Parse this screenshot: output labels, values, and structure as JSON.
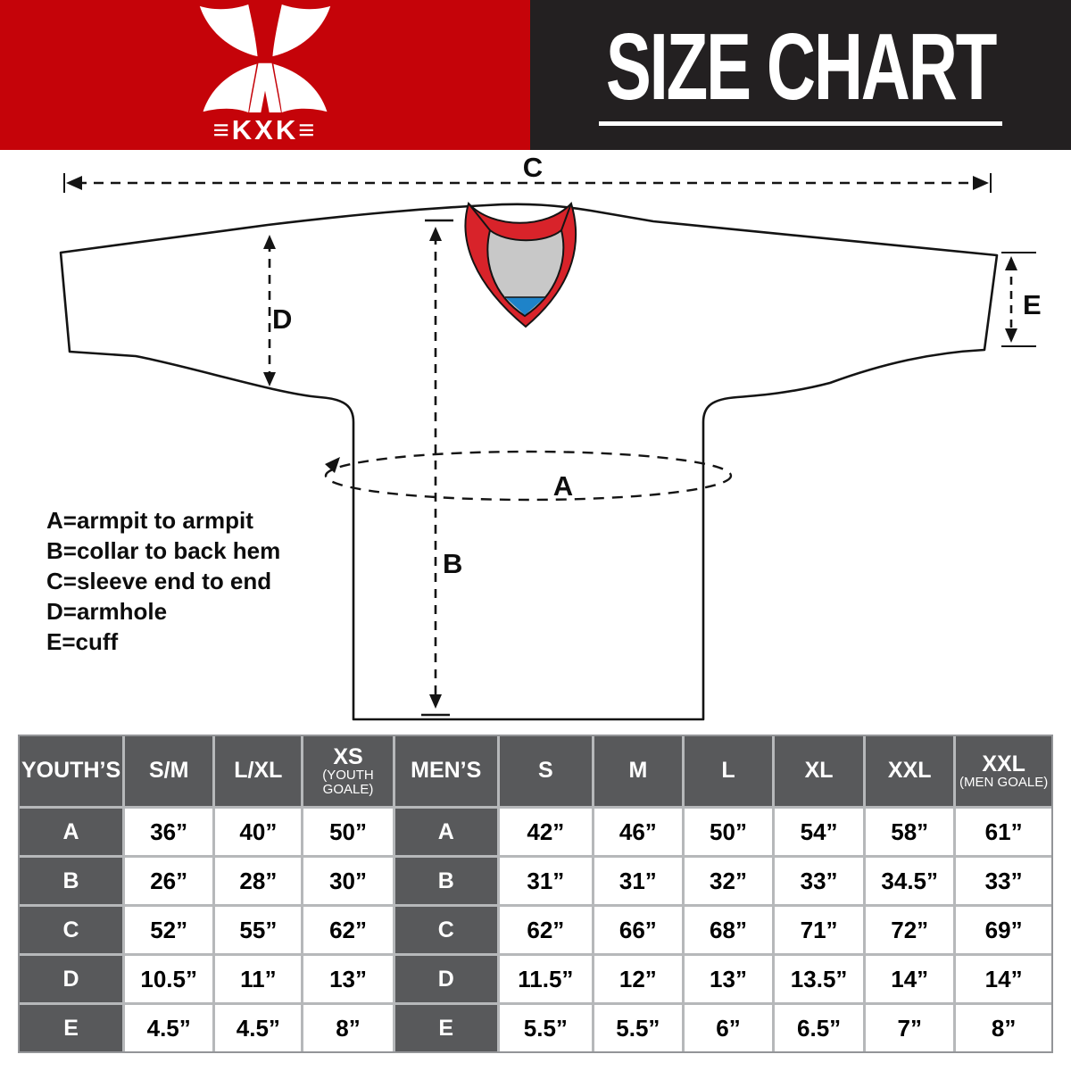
{
  "header": {
    "brand": "KXK",
    "logo_text": "≡KXK≡",
    "title": "SIZE CHART",
    "colors": {
      "red": "#c50309",
      "black": "#232021"
    }
  },
  "diagram": {
    "labels": {
      "A": "A",
      "B": "B",
      "C": "C",
      "D": "D",
      "E": "E"
    },
    "legend": [
      "A=armpit to armpit",
      "B=collar to back hem",
      "C=sleeve end to end",
      "D=armhole",
      "E=cuff"
    ],
    "collar_colors": {
      "red": "#d8232a",
      "inner_gray": "#c8c8c8",
      "blue": "#1e83c9"
    }
  },
  "table": {
    "dark_columns": [
      0,
      4
    ],
    "columns": [
      {
        "label": "YOUTH’S"
      },
      {
        "label": "S/M"
      },
      {
        "label": "L/XL"
      },
      {
        "label": "XS",
        "sub": "(YOUTH GOALE)"
      },
      {
        "label": "MEN’S"
      },
      {
        "label": "S"
      },
      {
        "label": "M"
      },
      {
        "label": "L"
      },
      {
        "label": "XL"
      },
      {
        "label": "XXL"
      },
      {
        "label": "XXL",
        "sub": "(MEN GOALE)"
      }
    ],
    "rows": [
      [
        "A",
        "36”",
        "40”",
        "50”",
        "A",
        "42”",
        "46”",
        "50”",
        "54”",
        "58”",
        "61”"
      ],
      [
        "B",
        "26”",
        "28”",
        "30”",
        "B",
        "31”",
        "31”",
        "32”",
        "33”",
        "34.5”",
        "33”"
      ],
      [
        "C",
        "52”",
        "55”",
        "62”",
        "C",
        "62”",
        "66”",
        "68”",
        "71”",
        "72”",
        "69”"
      ],
      [
        "D",
        "10.5”",
        "11”",
        "13”",
        "D",
        "11.5”",
        "12”",
        "13”",
        "13.5”",
        "14”",
        "14”"
      ],
      [
        "E",
        "4.5”",
        "4.5”",
        "8”",
        "E",
        "5.5”",
        "5.5”",
        "6”",
        "6.5”",
        "7”",
        "8”"
      ]
    ]
  }
}
